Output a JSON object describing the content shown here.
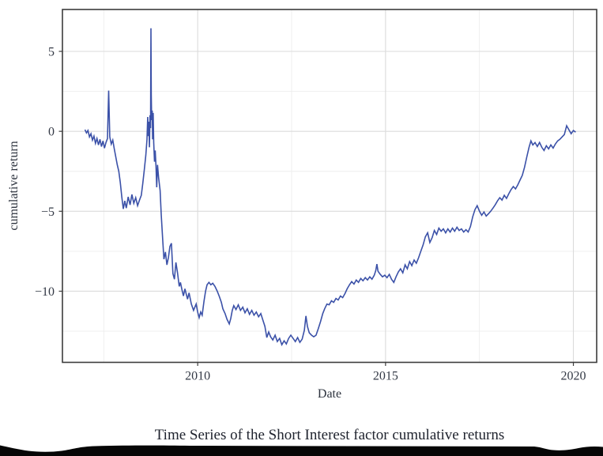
{
  "figure": {
    "caption": "Time Series of the Short Interest factor cumulative returns"
  },
  "chart_data": {
    "type": "line",
    "title": "",
    "xlabel": "Date",
    "ylabel": "cumulative return",
    "legend": "none",
    "grid": true,
    "line_color": "#3b51a8",
    "xlim": [
      2006.4,
      2020.62
    ],
    "ylim": [
      -14.45,
      7.62
    ],
    "x_major_ticks": [
      2010,
      2015,
      2020
    ],
    "x_major_labels": [
      "2010",
      "2015",
      "2020"
    ],
    "x_minor_ticks": [
      2007.5,
      2012.5,
      2017.5
    ],
    "y_major_ticks": [
      5,
      0,
      -5,
      -10
    ],
    "y_major_labels": [
      "5",
      "0",
      "−5",
      "−10"
    ],
    "y_minor_ticks": [
      2.5,
      -2.5,
      -7.5,
      -12.5
    ],
    "series": [
      {
        "name": "Short Interest factor cumulative return",
        "x": [
          2007.0,
          2007.04,
          2007.08,
          2007.12,
          2007.16,
          2007.2,
          2007.24,
          2007.28,
          2007.32,
          2007.36,
          2007.4,
          2007.44,
          2007.48,
          2007.52,
          2007.56,
          2007.6,
          2007.63,
          2007.66,
          2007.7,
          2007.74,
          2007.78,
          2007.82,
          2007.86,
          2007.9,
          2007.94,
          2007.98,
          2008.02,
          2008.06,
          2008.1,
          2008.15,
          2008.2,
          2008.25,
          2008.3,
          2008.35,
          2008.4,
          2008.45,
          2008.5,
          2008.54,
          2008.58,
          2008.62,
          2008.65,
          2008.67,
          2008.685,
          2008.7,
          2008.715,
          2008.73,
          2008.745,
          2008.755,
          2008.765,
          2008.775,
          2008.79,
          2008.8,
          2008.815,
          2008.83,
          2008.85,
          2008.87,
          2008.89,
          2008.91,
          2008.93,
          2008.96,
          2009.0,
          2009.03,
          2009.07,
          2009.1,
          2009.14,
          2009.18,
          2009.22,
          2009.26,
          2009.3,
          2009.34,
          2009.38,
          2009.42,
          2009.46,
          2009.51,
          2009.54,
          2009.58,
          2009.62,
          2009.66,
          2009.73,
          2009.77,
          2009.83,
          2009.89,
          2009.96,
          2010.0,
          2010.04,
          2010.08,
          2010.12,
          2010.17,
          2010.21,
          2010.25,
          2010.3,
          2010.35,
          2010.4,
          2010.46,
          2010.52,
          2010.58,
          2010.63,
          2010.67,
          2010.73,
          2010.78,
          2010.84,
          2010.88,
          2010.92,
          2010.96,
          2011.02,
          2011.08,
          2011.14,
          2011.2,
          2011.26,
          2011.32,
          2011.38,
          2011.44,
          2011.5,
          2011.56,
          2011.62,
          2011.68,
          2011.74,
          2011.79,
          2011.84,
          2011.89,
          2011.94,
          2012.0,
          2012.06,
          2012.12,
          2012.18,
          2012.24,
          2012.3,
          2012.36,
          2012.42,
          2012.48,
          2012.54,
          2012.6,
          2012.66,
          2012.72,
          2012.78,
          2012.84,
          2012.88,
          2012.92,
          2012.97,
          2013.03,
          2013.09,
          2013.15,
          2013.21,
          2013.27,
          2013.33,
          2013.38,
          2013.44,
          2013.5,
          2013.56,
          2013.62,
          2013.68,
          2013.74,
          2013.8,
          2013.86,
          2013.92,
          2013.98,
          2014.04,
          2014.1,
          2014.16,
          2014.22,
          2014.28,
          2014.34,
          2014.4,
          2014.46,
          2014.52,
          2014.58,
          2014.64,
          2014.7,
          2014.74,
          2014.77,
          2014.8,
          2014.86,
          2014.92,
          2014.98,
          2015.04,
          2015.1,
          2015.16,
          2015.22,
          2015.28,
          2015.34,
          2015.4,
          2015.46,
          2015.52,
          2015.58,
          2015.64,
          2015.7,
          2015.76,
          2015.82,
          2015.88,
          2015.94,
          2016.0,
          2016.06,
          2016.12,
          2016.18,
          2016.24,
          2016.3,
          2016.36,
          2016.42,
          2016.48,
          2016.54,
          2016.6,
          2016.66,
          2016.72,
          2016.78,
          2016.84,
          2016.9,
          2016.96,
          2017.02,
          2017.08,
          2017.14,
          2017.2,
          2017.26,
          2017.32,
          2017.38,
          2017.44,
          2017.5,
          2017.56,
          2017.62,
          2017.68,
          2017.74,
          2017.8,
          2017.86,
          2017.92,
          2017.98,
          2018.04,
          2018.1,
          2018.16,
          2018.22,
          2018.28,
          2018.34,
          2018.4,
          2018.46,
          2018.52,
          2018.58,
          2018.64,
          2018.7,
          2018.76,
          2018.82,
          2018.87,
          2018.92,
          2018.98,
          2019.04,
          2019.1,
          2019.16,
          2019.22,
          2019.28,
          2019.34,
          2019.4,
          2019.46,
          2019.52,
          2019.58,
          2019.64,
          2019.7,
          2019.76,
          2019.82,
          2019.88,
          2019.94,
          2020.0,
          2020.06
        ],
        "y": [
          0.1,
          -0.1,
          0.05,
          -0.35,
          -0.15,
          -0.55,
          -0.3,
          -0.75,
          -0.45,
          -0.85,
          -0.5,
          -0.95,
          -0.6,
          -1.05,
          -0.7,
          -0.45,
          2.55,
          -0.35,
          -0.8,
          -0.55,
          -1.1,
          -1.6,
          -2.1,
          -2.5,
          -3.2,
          -4.1,
          -4.85,
          -4.35,
          -4.8,
          -4.1,
          -4.6,
          -3.95,
          -4.5,
          -4.15,
          -4.65,
          -4.3,
          -4.0,
          -3.25,
          -2.4,
          -1.5,
          -0.5,
          0.9,
          -0.3,
          0.6,
          -1.0,
          1.0,
          0.2,
          6.45,
          2.3,
          0.7,
          1.3,
          -0.5,
          1.15,
          -0.7,
          -1.9,
          -1.2,
          -2.2,
          -3.5,
          -2.1,
          -2.9,
          -3.7,
          -5.2,
          -6.8,
          -8.0,
          -7.55,
          -8.35,
          -7.9,
          -7.2,
          -7.0,
          -8.9,
          -9.25,
          -8.2,
          -8.8,
          -9.7,
          -9.45,
          -9.9,
          -10.3,
          -9.85,
          -10.5,
          -10.1,
          -10.8,
          -11.2,
          -10.8,
          -11.3,
          -11.65,
          -11.3,
          -11.5,
          -10.6,
          -10.0,
          -9.6,
          -9.45,
          -9.6,
          -9.5,
          -9.7,
          -10.0,
          -10.35,
          -10.7,
          -11.1,
          -11.4,
          -11.75,
          -12.05,
          -11.7,
          -11.2,
          -10.9,
          -11.15,
          -10.85,
          -11.2,
          -11.0,
          -11.35,
          -11.1,
          -11.45,
          -11.2,
          -11.5,
          -11.3,
          -11.6,
          -11.4,
          -11.85,
          -12.2,
          -12.9,
          -12.55,
          -12.85,
          -13.05,
          -12.75,
          -13.15,
          -12.95,
          -13.35,
          -13.1,
          -13.3,
          -12.95,
          -12.75,
          -12.95,
          -13.15,
          -12.9,
          -13.2,
          -13.0,
          -12.45,
          -11.55,
          -12.2,
          -12.6,
          -12.75,
          -12.85,
          -12.75,
          -12.35,
          -11.9,
          -11.4,
          -11.1,
          -10.8,
          -10.85,
          -10.6,
          -10.7,
          -10.45,
          -10.55,
          -10.3,
          -10.4,
          -10.15,
          -9.85,
          -9.6,
          -9.4,
          -9.55,
          -9.3,
          -9.45,
          -9.2,
          -9.35,
          -9.15,
          -9.3,
          -9.1,
          -9.25,
          -9.0,
          -8.7,
          -8.3,
          -8.75,
          -8.95,
          -9.1,
          -9.0,
          -9.15,
          -8.95,
          -9.25,
          -9.45,
          -9.1,
          -8.8,
          -8.6,
          -8.85,
          -8.35,
          -8.6,
          -8.15,
          -8.4,
          -8.05,
          -8.25,
          -7.9,
          -7.5,
          -7.1,
          -6.6,
          -6.35,
          -6.95,
          -6.65,
          -6.2,
          -6.45,
          -6.05,
          -6.25,
          -6.1,
          -6.35,
          -6.1,
          -6.3,
          -6.05,
          -6.25,
          -6.0,
          -6.2,
          -6.1,
          -6.3,
          -6.15,
          -6.3,
          -5.95,
          -5.35,
          -4.9,
          -4.65,
          -5.0,
          -5.25,
          -5.05,
          -5.3,
          -5.15,
          -5.0,
          -4.8,
          -4.6,
          -4.35,
          -4.15,
          -4.3,
          -4.0,
          -4.2,
          -3.9,
          -3.65,
          -3.45,
          -3.6,
          -3.35,
          -3.05,
          -2.75,
          -2.25,
          -1.6,
          -1.0,
          -0.6,
          -0.85,
          -0.7,
          -0.95,
          -0.7,
          -1.0,
          -1.2,
          -0.9,
          -1.1,
          -0.85,
          -1.05,
          -0.8,
          -0.6,
          -0.5,
          -0.35,
          -0.2,
          0.35,
          0.1,
          -0.15,
          0.05,
          -0.05
        ]
      }
    ]
  }
}
